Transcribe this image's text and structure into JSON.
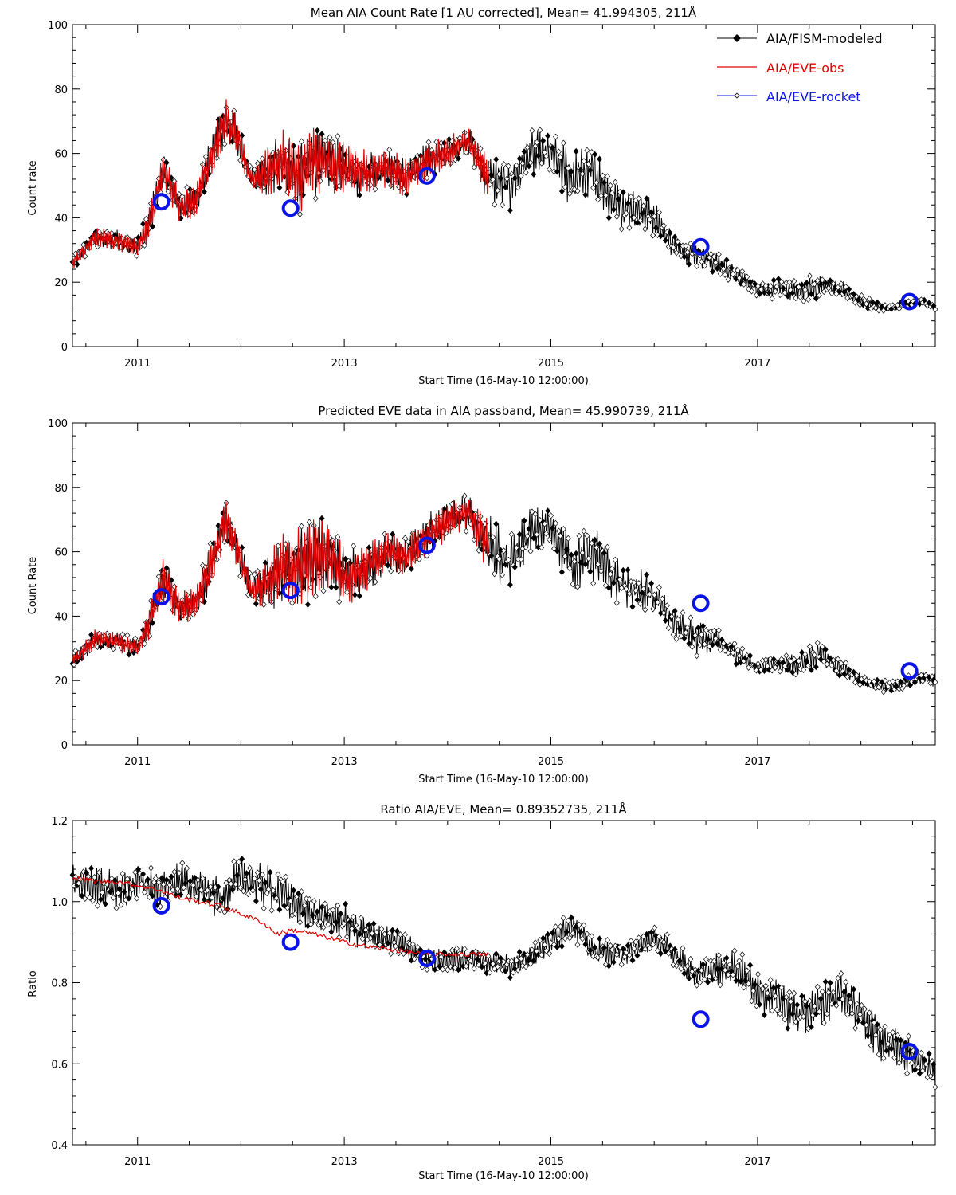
{
  "chart_data": [
    {
      "type": "line",
      "title": "Mean AIA Count Rate [1 AU corrected], Mean= 41.994305, 211Å",
      "xlabel": "Start Time (16-May-10 12:00:00)",
      "ylabel": "Count rate",
      "xlim": [
        2010.37,
        2018.72
      ],
      "ylim": [
        0,
        100
      ],
      "yticks": [
        0,
        20,
        40,
        60,
        80,
        100
      ],
      "ytick_labels": [
        "0",
        "20",
        "40",
        "60",
        "80",
        "100"
      ],
      "xticks": [
        2011,
        2013,
        2015,
        2017
      ],
      "xtick_labels": [
        "2011",
        "2013",
        "2015",
        "2017"
      ],
      "legend": [
        {
          "label": "AIA/FISM-modeled",
          "color": "#000000"
        },
        {
          "label": "AIA/EVE-obs",
          "color": "#e00000"
        },
        {
          "label": "AIA/EVE-rocket",
          "color": "#0a14e6"
        }
      ],
      "series": [
        {
          "name": "AIA/FISM-modeled",
          "x": [
            2010.37,
            2010.6,
            2010.8,
            2011.0,
            2011.1,
            2011.25,
            2011.4,
            2011.55,
            2011.7,
            2011.85,
            2011.95,
            2012.1,
            2012.25,
            2012.4,
            2012.55,
            2012.7,
            2012.85,
            2013.0,
            2013.2,
            2013.4,
            2013.6,
            2013.8,
            2014.0,
            2014.2,
            2014.4,
            2014.6,
            2014.8,
            2015.0,
            2015.2,
            2015.4,
            2015.6,
            2015.8,
            2016.0,
            2016.2,
            2016.4,
            2016.6,
            2016.8,
            2017.0,
            2017.2,
            2017.4,
            2017.6,
            2017.8,
            2018.0,
            2018.2,
            2018.4,
            2018.6,
            2018.72
          ],
          "y": [
            26,
            34,
            33,
            31,
            37,
            55,
            44,
            45,
            58,
            70,
            66,
            52,
            54,
            58,
            52,
            58,
            57,
            55,
            54,
            56,
            52,
            58,
            60,
            64,
            52,
            50,
            60,
            60,
            52,
            55,
            44,
            43,
            40,
            31,
            29,
            26,
            22,
            18,
            18,
            17,
            19,
            18,
            14,
            12,
            13,
            14,
            12
          ],
          "amplitude": [
            2,
            3,
            3,
            3,
            5,
            6,
            5,
            5,
            6,
            7,
            6,
            3,
            7,
            10,
            11,
            11,
            9,
            8,
            7,
            6,
            6,
            6,
            5,
            4,
            7,
            8,
            7,
            6,
            9,
            8,
            7,
            6,
            5,
            4,
            4,
            3,
            3,
            2,
            3,
            3,
            4,
            3,
            2,
            1,
            1,
            1,
            1
          ]
        },
        {
          "name": "AIA/EVE-obs",
          "x_range": [
            2010.37,
            2014.4
          ],
          "note": "overlaps modeled series"
        },
        {
          "name": "AIA/EVE-rocket",
          "x": [
            2011.23,
            2012.48,
            2013.8,
            2016.45,
            2018.47
          ],
          "y": [
            45,
            43,
            53,
            31,
            14
          ]
        }
      ]
    },
    {
      "type": "line",
      "title": "Predicted EVE data in AIA passband, Mean= 45.990739, 211Å",
      "xlabel": "Start Time (16-May-10 12:00:00)",
      "ylabel": "Count Rate",
      "xlim": [
        2010.37,
        2018.72
      ],
      "ylim": [
        0,
        100
      ],
      "yticks": [
        0,
        20,
        40,
        60,
        80,
        100
      ],
      "ytick_labels": [
        "0",
        "20",
        "40",
        "60",
        "80",
        "100"
      ],
      "xticks": [
        2011,
        2013,
        2015,
        2017
      ],
      "xtick_labels": [
        "2011",
        "2013",
        "2015",
        "2017"
      ],
      "series": [
        {
          "name": "AIA/FISM-modeled",
          "x": [
            2010.37,
            2010.6,
            2010.8,
            2011.0,
            2011.1,
            2011.25,
            2011.4,
            2011.55,
            2011.7,
            2011.85,
            2011.95,
            2012.1,
            2012.25,
            2012.4,
            2012.55,
            2012.7,
            2012.85,
            2013.0,
            2013.2,
            2013.4,
            2013.6,
            2013.8,
            2014.0,
            2014.2,
            2014.4,
            2014.6,
            2014.8,
            2015.0,
            2015.2,
            2015.4,
            2015.6,
            2015.8,
            2016.0,
            2016.2,
            2016.4,
            2016.6,
            2016.8,
            2017.0,
            2017.2,
            2017.4,
            2017.6,
            2017.8,
            2018.0,
            2018.2,
            2018.4,
            2018.6,
            2018.72
          ],
          "y": [
            26,
            33,
            32,
            30,
            37,
            52,
            43,
            44,
            54,
            70,
            62,
            48,
            50,
            55,
            55,
            58,
            60,
            52,
            55,
            60,
            58,
            65,
            70,
            72,
            62,
            56,
            66,
            68,
            56,
            60,
            52,
            48,
            46,
            38,
            33,
            32,
            28,
            24,
            25,
            25,
            28,
            24,
            20,
            18,
            19,
            21,
            20
          ],
          "amplitude": [
            2,
            3,
            3,
            3,
            5,
            7,
            5,
            5,
            7,
            7,
            6,
            4,
            8,
            10,
            12,
            12,
            10,
            9,
            8,
            7,
            6,
            6,
            6,
            5,
            9,
            9,
            7,
            6,
            9,
            9,
            8,
            7,
            6,
            5,
            5,
            4,
            3,
            2,
            3,
            3,
            4,
            3,
            2,
            2,
            2,
            2,
            2
          ]
        },
        {
          "name": "AIA/EVE-obs",
          "x_range": [
            2010.37,
            2014.4
          ],
          "note": "overlaps modeled series"
        },
        {
          "name": "AIA/EVE-rocket",
          "x": [
            2011.23,
            2012.48,
            2013.8,
            2016.45,
            2018.47
          ],
          "y": [
            46,
            48,
            62,
            44,
            23
          ]
        }
      ]
    },
    {
      "type": "line",
      "title": "Ratio AIA/EVE, Mean= 0.89352735, 211Å",
      "xlabel": "Start Time (16-May-10 12:00:00)",
      "ylabel": "Ratio",
      "xlim": [
        2010.37,
        2018.72
      ],
      "ylim": [
        0.4,
        1.2
      ],
      "yticks": [
        0.4,
        0.6,
        0.8,
        1.0,
        1.2
      ],
      "ytick_labels": [
        "0.4",
        "0.6",
        "0.8",
        "1.0",
        "1.2"
      ],
      "xticks": [
        2011,
        2013,
        2015,
        2017
      ],
      "xtick_labels": [
        "2011",
        "2013",
        "2015",
        "2017"
      ],
      "series": [
        {
          "name": "AIA/FISM-modeled",
          "x": [
            2010.37,
            2010.6,
            2010.8,
            2011.0,
            2011.2,
            2011.4,
            2011.6,
            2011.8,
            2012.0,
            2012.2,
            2012.4,
            2012.6,
            2012.8,
            2013.0,
            2013.2,
            2013.4,
            2013.6,
            2013.8,
            2014.0,
            2014.2,
            2014.4,
            2014.6,
            2014.8,
            2015.0,
            2015.2,
            2015.4,
            2015.6,
            2015.8,
            2016.0,
            2016.2,
            2016.4,
            2016.6,
            2016.8,
            2017.0,
            2017.2,
            2017.4,
            2017.6,
            2017.8,
            2018.0,
            2018.2,
            2018.4,
            2018.6,
            2018.72
          ],
          "y": [
            1.05,
            1.04,
            1.02,
            1.05,
            1.03,
            1.05,
            1.03,
            1.01,
            1.06,
            1.04,
            1.02,
            0.98,
            0.96,
            0.95,
            0.92,
            0.91,
            0.89,
            0.86,
            0.85,
            0.86,
            0.85,
            0.84,
            0.87,
            0.9,
            0.95,
            0.88,
            0.87,
            0.88,
            0.91,
            0.87,
            0.82,
            0.83,
            0.84,
            0.78,
            0.76,
            0.72,
            0.74,
            0.78,
            0.72,
            0.66,
            0.64,
            0.6,
            0.58
          ],
          "amplitude": [
            0.04,
            0.05,
            0.05,
            0.05,
            0.05,
            0.05,
            0.04,
            0.05,
            0.05,
            0.05,
            0.05,
            0.04,
            0.04,
            0.04,
            0.04,
            0.03,
            0.03,
            0.03,
            0.03,
            0.03,
            0.03,
            0.03,
            0.03,
            0.03,
            0.04,
            0.03,
            0.03,
            0.03,
            0.03,
            0.03,
            0.03,
            0.04,
            0.04,
            0.05,
            0.05,
            0.05,
            0.05,
            0.05,
            0.05,
            0.05,
            0.05,
            0.04,
            0.04
          ]
        },
        {
          "name": "AIA/EVE-obs",
          "x": [
            2010.37,
            2010.6,
            2010.8,
            2011.0,
            2011.2,
            2011.4,
            2011.6,
            2011.8,
            2012.0,
            2012.2,
            2012.35,
            2012.5,
            2012.7,
            2013.0,
            2013.2,
            2013.5,
            2013.8,
            2014.0,
            2014.2,
            2014.4
          ],
          "y": [
            1.06,
            1.05,
            1.05,
            1.04,
            1.03,
            1.01,
            1.0,
            0.99,
            0.97,
            0.95,
            0.92,
            0.93,
            0.92,
            0.9,
            0.89,
            0.88,
            0.87,
            0.87,
            0.87,
            0.87
          ]
        },
        {
          "name": "AIA/EVE-rocket",
          "x": [
            2011.23,
            2012.48,
            2013.8,
            2016.45,
            2018.47
          ],
          "y": [
            0.99,
            0.9,
            0.86,
            0.71,
            0.63
          ]
        }
      ]
    }
  ]
}
